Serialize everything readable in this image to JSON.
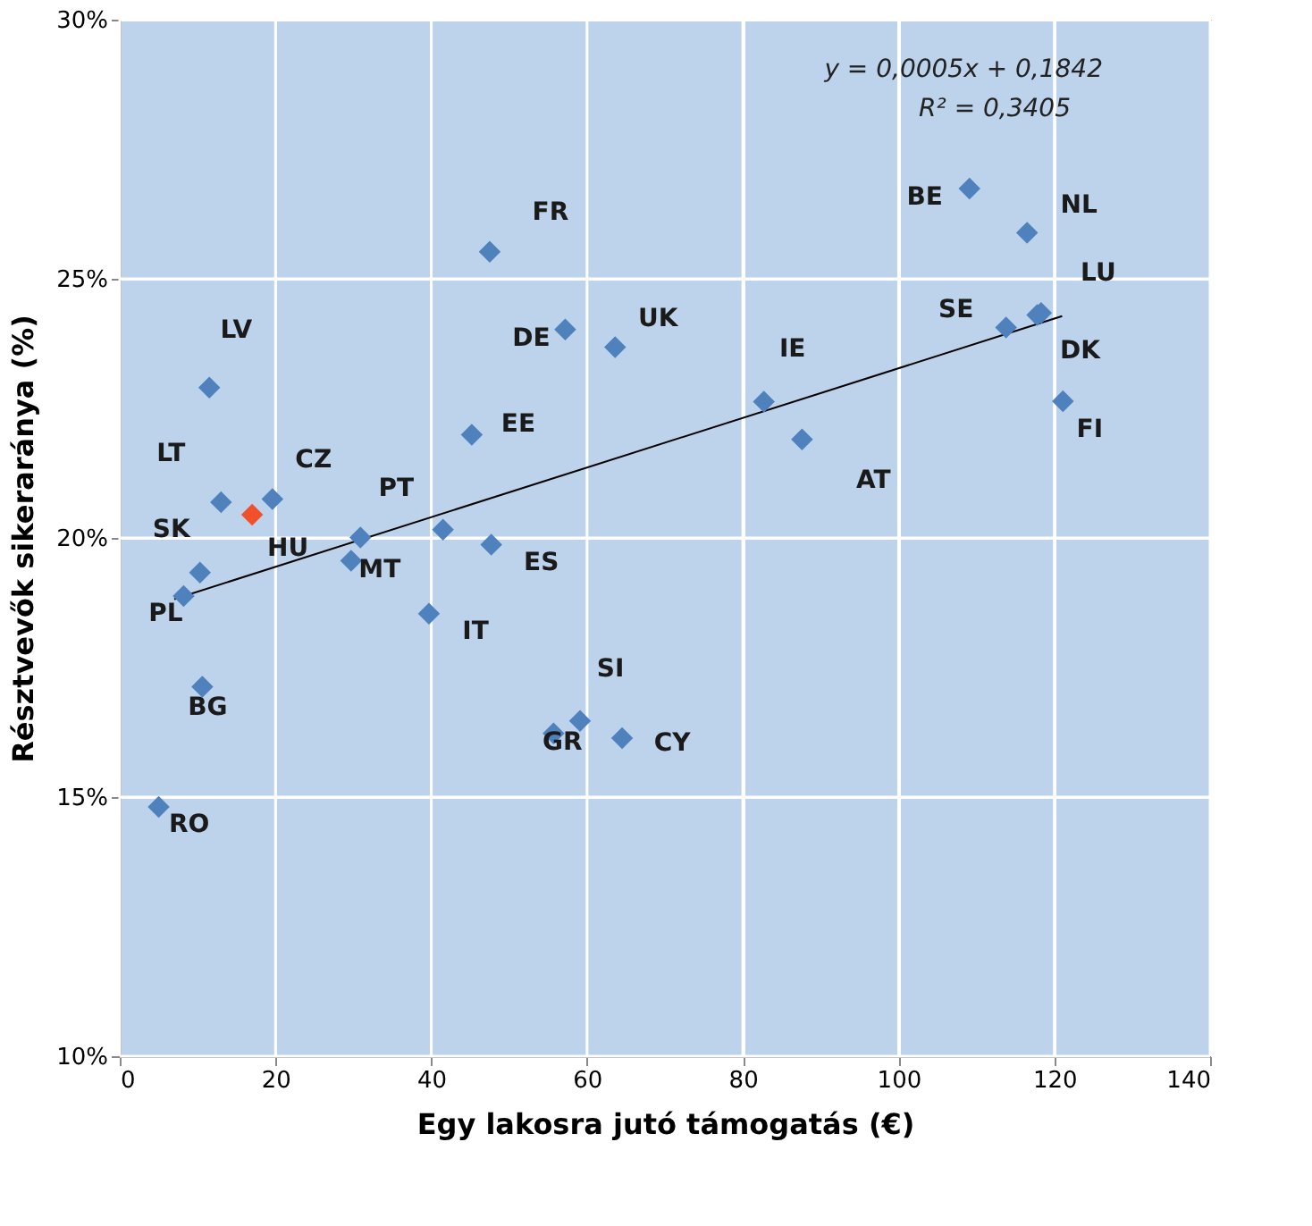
{
  "chart_data": {
    "type": "scatter",
    "xlabel": "Egy lakosra jutó támogatás (€)",
    "ylabel": "Résztvevők sikeraránya (%)",
    "xlim": [
      0,
      140
    ],
    "xticks": [
      0,
      20,
      40,
      60,
      80,
      100,
      120,
      140
    ],
    "ylim": [
      10,
      30
    ],
    "yticks": [
      {
        "value": 10,
        "label": "10%"
      },
      {
        "value": 15,
        "label": "15%"
      },
      {
        "value": 20,
        "label": "20%"
      },
      {
        "value": 25,
        "label": "25%"
      },
      {
        "value": 30,
        "label": "30%"
      }
    ],
    "grid": true,
    "annotations": [
      "y = 0,0005x + 0,1842",
      "R² = 0,3405"
    ],
    "series": [
      {
        "marker": "diamond",
        "x": [
          11.5,
          13.0,
          17.0,
          19.6,
          10.3,
          8.2,
          10.6,
          5.0,
          30.9,
          29.7,
          41.5,
          47.7,
          39.7,
          45.2,
          59.1,
          55.7,
          64.5,
          47.5,
          57.2,
          63.6,
          82.7,
          87.6,
          109.1,
          116.5,
          113.8,
          118.3,
          117.8,
          121.1
        ],
        "values": [
          22.9,
          20.69,
          20.45,
          20.75,
          19.33,
          18.88,
          17.13,
          14.81,
          20.01,
          19.56,
          20.16,
          19.87,
          18.54,
          21.99,
          16.47,
          16.23,
          16.14,
          25.52,
          24.02,
          23.68,
          22.63,
          21.9,
          26.74,
          25.89,
          24.06,
          24.34,
          24.3,
          22.64
        ],
        "value_labels": [
          "LV",
          "LT",
          "HU",
          "CZ",
          "SK",
          "PL",
          "BG",
          "RO",
          "PT",
          "MT",
          null,
          "ES",
          "IT",
          "EE",
          "SI",
          "GR",
          "CY",
          "FR",
          "DE",
          "UK",
          "IE",
          "AT",
          "BE",
          "NL",
          "SE",
          "LU",
          "DK",
          "FI"
        ],
        "colors": [
          "#4f81bd",
          "#4f81bd",
          "#f0502a",
          "#4f81bd",
          "#4f81bd",
          "#4f81bd",
          "#4f81bd",
          "#4f81bd",
          "#4f81bd",
          "#4f81bd",
          "#4f81bd",
          "#4f81bd",
          "#4f81bd",
          "#4f81bd",
          "#4f81bd",
          "#4f81bd",
          "#4f81bd",
          "#4f81bd",
          "#4f81bd",
          "#4f81bd",
          "#4f81bd",
          "#4f81bd",
          "#4f81bd",
          "#4f81bd",
          "#4f81bd",
          "#4f81bd",
          "#4f81bd",
          "#4f81bd"
        ]
      },
      {
        "type": "line",
        "x": [
          7,
          121
        ],
        "values": [
          18.82,
          24.28
        ],
        "color": "#000000",
        "line_style": "solid"
      }
    ]
  }
}
